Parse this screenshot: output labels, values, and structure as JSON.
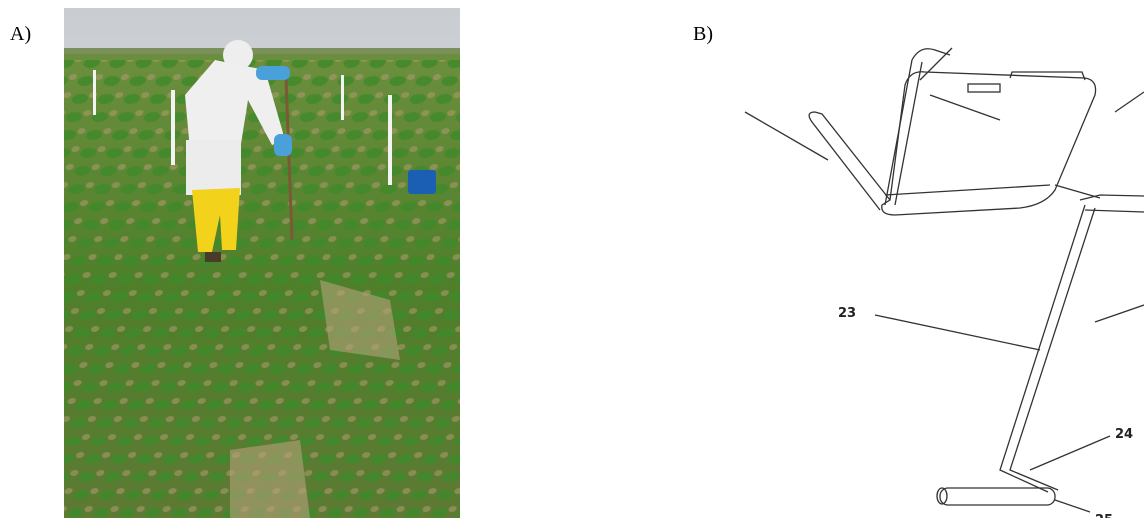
{
  "panels": [
    {
      "label": "A)"
    },
    {
      "label": "B)",
      "callouts": [
        "23",
        "24",
        "25"
      ]
    }
  ]
}
